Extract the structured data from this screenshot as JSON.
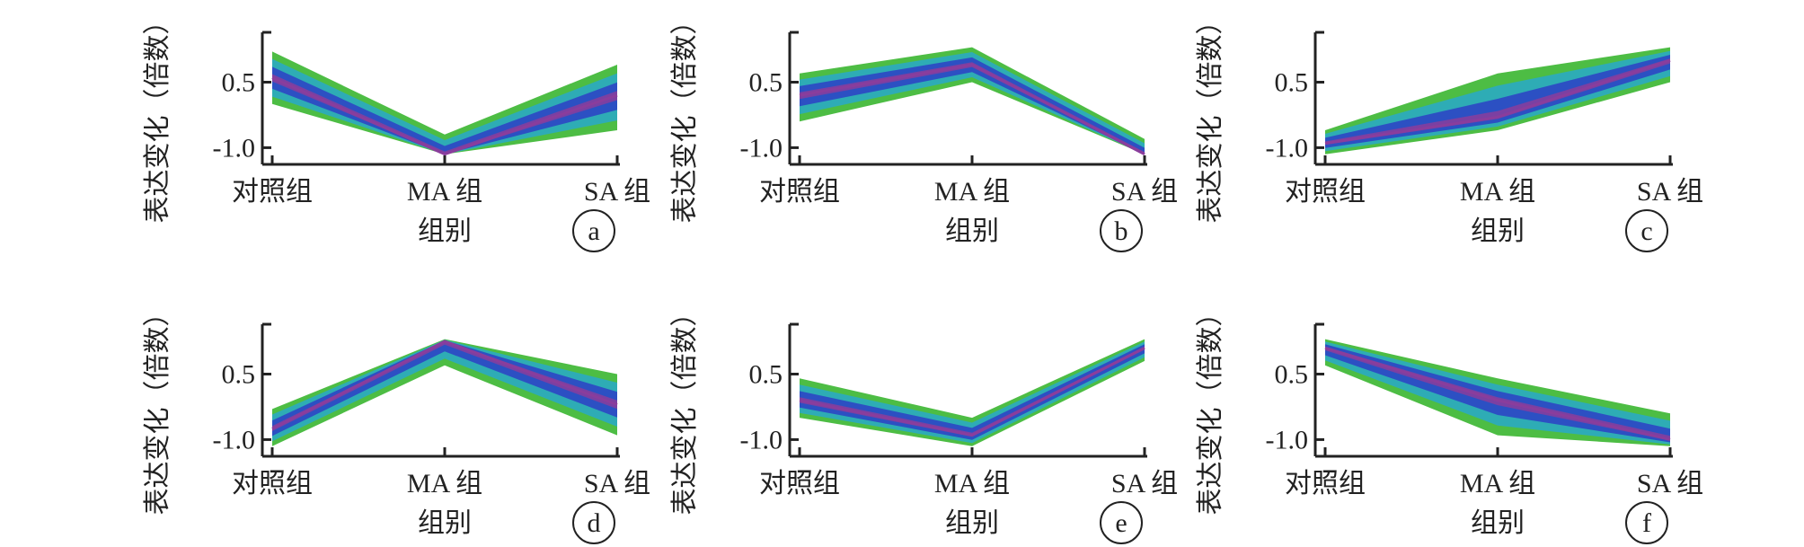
{
  "chart_data": [
    {
      "type": "area",
      "panel_label": "a",
      "categories": [
        "对照组",
        "MA 组",
        "SA 组"
      ],
      "ylabel": "表达变化（倍数）",
      "xlabel": "组别",
      "yticks": [
        0.5,
        -1.0
      ],
      "ylim": [
        -1.3,
        1.6
      ],
      "center": [
        0.6,
        -1.15,
        0.2
      ],
      "upper": [
        1.2,
        -0.7,
        0.9
      ],
      "lower": [
        0.0,
        -1.15,
        -0.6
      ]
    },
    {
      "type": "area",
      "panel_label": "b",
      "categories": [
        "对照组",
        "MA 组",
        "SA 组"
      ],
      "ylabel": "表达变化（倍数）",
      "xlabel": "组别",
      "yticks": [
        0.5,
        -1.0
      ],
      "ylim": [
        -1.3,
        1.6
      ],
      "center": [
        0.2,
        0.9,
        -1.15
      ],
      "upper": [
        0.7,
        1.3,
        -0.8
      ],
      "lower": [
        -0.4,
        0.5,
        -1.15
      ]
    },
    {
      "type": "area",
      "panel_label": "c",
      "categories": [
        "对照组",
        "MA 组",
        "SA 组"
      ],
      "ylabel": "表达变化（倍数）",
      "xlabel": "组别",
      "yticks": [
        0.5,
        -1.0
      ],
      "ylim": [
        -1.3,
        1.6
      ],
      "center": [
        -0.9,
        -0.3,
        1.0
      ],
      "upper": [
        -0.6,
        0.7,
        1.3
      ],
      "lower": [
        -1.15,
        -0.6,
        0.5
      ]
    },
    {
      "type": "area",
      "panel_label": "d",
      "categories": [
        "对照组",
        "MA 组",
        "SA 组"
      ],
      "ylabel": "表达变化（倍数）",
      "xlabel": "组别",
      "yticks": [
        0.5,
        -1.0
      ],
      "ylim": [
        -1.3,
        1.6
      ],
      "center": [
        -0.75,
        1.25,
        -0.2
      ],
      "upper": [
        -0.3,
        1.3,
        0.5
      ],
      "lower": [
        -1.15,
        0.7,
        -0.9
      ]
    },
    {
      "type": "area",
      "panel_label": "e",
      "categories": [
        "对照组",
        "MA 组",
        "SA 组"
      ],
      "ylabel": "表达变化（倍数）",
      "xlabel": "组别",
      "yticks": [
        0.5,
        -1.0
      ],
      "ylim": [
        -1.3,
        1.6
      ],
      "center": [
        -0.1,
        -0.9,
        1.1
      ],
      "upper": [
        0.4,
        -0.5,
        1.3
      ],
      "lower": [
        -0.5,
        -1.15,
        0.8
      ]
    },
    {
      "type": "area",
      "panel_label": "f",
      "categories": [
        "对照组",
        "MA 组",
        "SA 组"
      ],
      "ylabel": "表达变化（倍数）",
      "xlabel": "组别",
      "yticks": [
        0.5,
        -1.0
      ],
      "ylim": [
        -1.3,
        1.6
      ],
      "center": [
        1.1,
        -0.1,
        -1.0
      ],
      "upper": [
        1.3,
        0.4,
        -0.4
      ],
      "lower": [
        0.7,
        -0.9,
        -1.15
      ]
    }
  ],
  "colors": {
    "outer": "#4dbd44",
    "mid": "#29a9c9",
    "inner": "#2b3fc6",
    "core": "#8a3d9c",
    "axis": "#222222"
  }
}
